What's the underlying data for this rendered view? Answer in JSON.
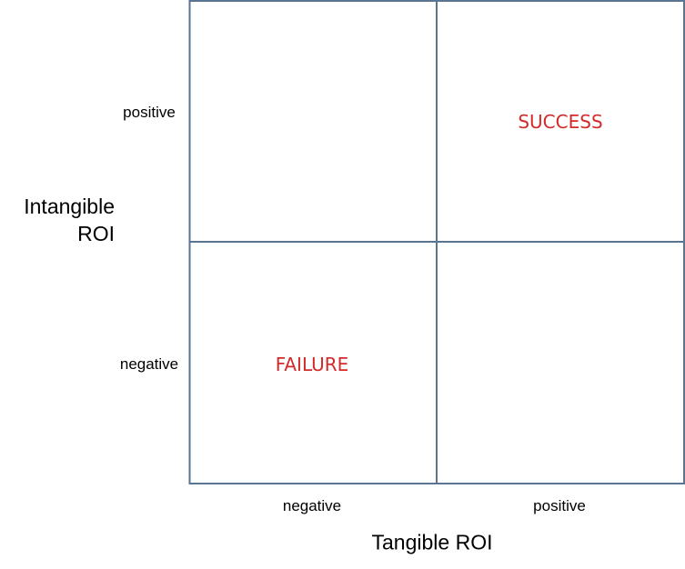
{
  "y_axis": {
    "label": "Intangible ROI",
    "levels": [
      "positive",
      "negative"
    ]
  },
  "x_axis": {
    "label": "Tangible ROI",
    "levels": [
      "negative",
      "positive"
    ]
  },
  "quadrants": {
    "top_right": "SUCCESS",
    "bottom_left": "FAILURE"
  }
}
